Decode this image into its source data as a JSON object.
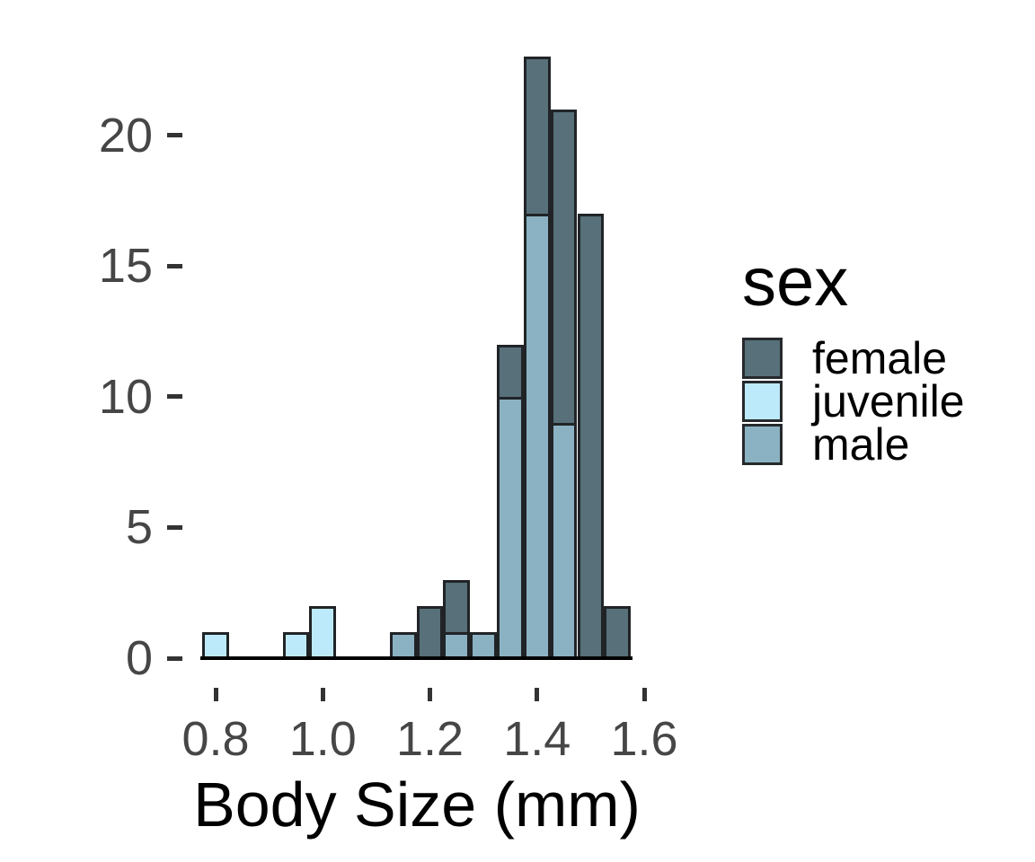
{
  "chart_data": {
    "type": "bar",
    "subtype": "stacked-histogram",
    "title": "",
    "xlabel": "Body Size (mm)",
    "ylabel": "",
    "legend_title": "sex",
    "legend_position": "right",
    "grid": false,
    "binwidth": 0.05,
    "xlim": [
      0.7375,
      1.6625
    ],
    "ylim": [
      0,
      23
    ],
    "x_ticks": [
      {
        "value": 0.8,
        "label": "0.8"
      },
      {
        "value": 1.0,
        "label": "1.0"
      },
      {
        "value": 1.2,
        "label": "1.2"
      },
      {
        "value": 1.4,
        "label": "1.4"
      },
      {
        "value": 1.6,
        "label": "1.6"
      }
    ],
    "y_ticks": [
      {
        "value": 0,
        "label": "0"
      },
      {
        "value": 5,
        "label": "5"
      },
      {
        "value": 10,
        "label": "10"
      },
      {
        "value": 15,
        "label": "15"
      },
      {
        "value": 20,
        "label": "20"
      }
    ],
    "groups": [
      {
        "name": "female",
        "color": "#57707A"
      },
      {
        "name": "juvenile",
        "color": "#BDEAFB"
      },
      {
        "name": "male",
        "color": "#8BB2C2"
      }
    ],
    "stack_order_bottom_to_top": [
      "male",
      "juvenile",
      "female"
    ],
    "bins": [
      {
        "center": 0.8,
        "counts": {
          "juvenile": 1
        }
      },
      {
        "center": 0.95,
        "counts": {
          "juvenile": 1
        }
      },
      {
        "center": 1.0,
        "counts": {
          "juvenile": 2
        }
      },
      {
        "center": 1.15,
        "counts": {
          "male": 1
        }
      },
      {
        "center": 1.2,
        "counts": {
          "female": 2
        }
      },
      {
        "center": 1.25,
        "counts": {
          "male": 1,
          "female": 2
        }
      },
      {
        "center": 1.3,
        "counts": {
          "male": 1
        }
      },
      {
        "center": 1.35,
        "counts": {
          "male": 10,
          "female": 2
        }
      },
      {
        "center": 1.4,
        "counts": {
          "male": 17,
          "female": 6
        }
      },
      {
        "center": 1.45,
        "counts": {
          "male": 9,
          "female": 12
        }
      },
      {
        "center": 1.5,
        "counts": {
          "female": 17
        }
      },
      {
        "center": 1.55,
        "counts": {
          "female": 2
        }
      }
    ],
    "series": [
      {
        "name": "female",
        "x": [
          1.2,
          1.25,
          1.35,
          1.4,
          1.45,
          1.5,
          1.55
        ],
        "values": [
          2,
          2,
          2,
          6,
          12,
          17,
          2
        ]
      },
      {
        "name": "juvenile",
        "x": [
          0.8,
          0.95,
          1.0
        ],
        "values": [
          1,
          1,
          2
        ]
      },
      {
        "name": "male",
        "x": [
          1.15,
          1.25,
          1.3,
          1.35,
          1.4,
          1.45
        ],
        "values": [
          1,
          1,
          1,
          10,
          17,
          9
        ]
      }
    ]
  },
  "styles": {
    "background": "#FFFFFF",
    "bar_border_color": "#212427",
    "axis_line_color": "#000000",
    "tick_mark_color": "#333333",
    "tick_label_color": "#464646",
    "text_color": "#000000"
  }
}
